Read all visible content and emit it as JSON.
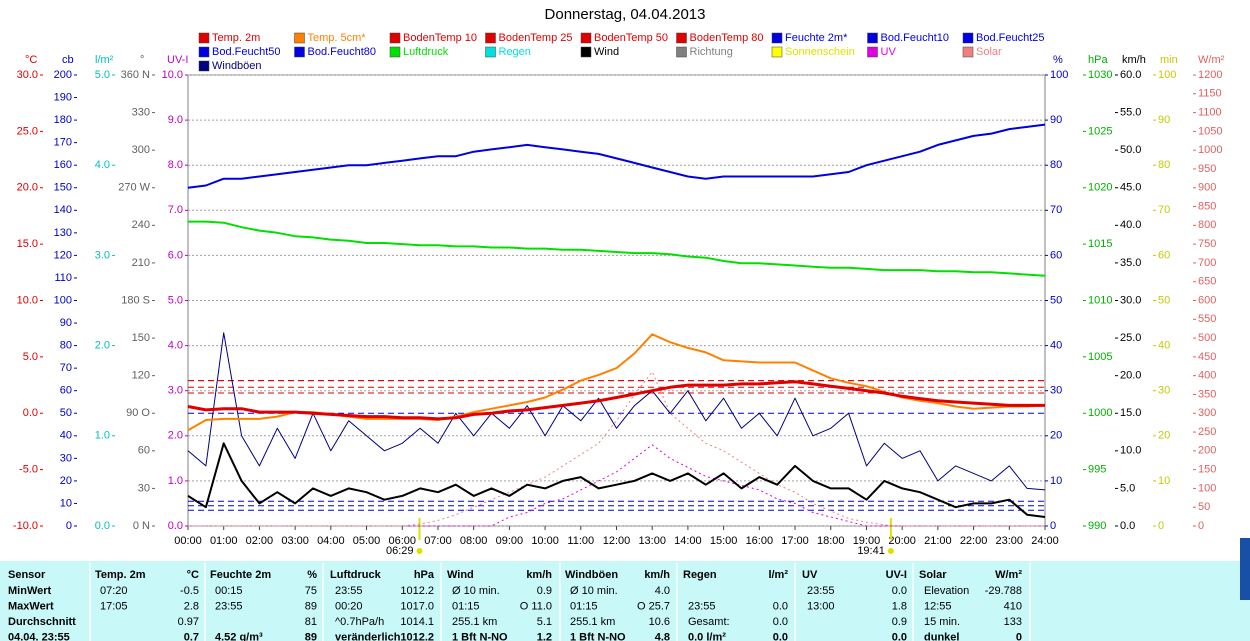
{
  "chart_data": {
    "type": "line",
    "title": "Donnerstag, 04.04.2013",
    "xlim": [
      0,
      24
    ],
    "xticks": [
      {
        "value": 0,
        "label": "00:00"
      },
      {
        "value": 1,
        "label": "01:00"
      },
      {
        "value": 2,
        "label": "02:00"
      },
      {
        "value": 3,
        "label": "03:00"
      },
      {
        "value": 4,
        "label": "04:00"
      },
      {
        "value": 5,
        "label": "05:00"
      },
      {
        "value": 6,
        "label": "06:00"
      },
      {
        "value": 7,
        "label": "07:00"
      },
      {
        "value": 8,
        "label": "08:00"
      },
      {
        "value": 9,
        "label": "09:00"
      },
      {
        "value": 10,
        "label": "10:00"
      },
      {
        "value": 11,
        "label": "11:00"
      },
      {
        "value": 12,
        "label": "12:00"
      },
      {
        "value": 13,
        "label": "13:00"
      },
      {
        "value": 14,
        "label": "14:00"
      },
      {
        "value": 15,
        "label": "15:00"
      },
      {
        "value": 16,
        "label": "16:00"
      },
      {
        "value": 17,
        "label": "17:00"
      },
      {
        "value": 18,
        "label": "18:00"
      },
      {
        "value": 19,
        "label": "19:00"
      },
      {
        "value": 20,
        "label": "20:00"
      },
      {
        "value": 21,
        "label": "21:00"
      },
      {
        "value": 22,
        "label": "22:00"
      },
      {
        "value": 23,
        "label": "23:00"
      },
      {
        "value": 24,
        "label": "24:00"
      }
    ],
    "sunrise": "06:29",
    "sunset": "19:41",
    "grid": true,
    "grid_axis": "UV-I",
    "x": [
      0,
      0.5,
      1,
      1.5,
      2,
      2.5,
      3,
      3.5,
      4,
      4.5,
      5,
      5.5,
      6,
      6.5,
      7,
      7.5,
      8,
      8.5,
      9,
      9.5,
      10,
      10.5,
      11,
      11.5,
      12,
      12.5,
      13,
      13.5,
      14,
      14.5,
      15,
      15.5,
      16,
      16.5,
      17,
      17.5,
      18,
      18.5,
      19,
      19.5,
      20,
      20.5,
      21,
      21.5,
      22,
      22.5,
      23,
      23.5,
      24
    ],
    "axes": [
      {
        "label": "°C",
        "side": "left",
        "color": "#e00000",
        "lim": [
          -10,
          30
        ],
        "ticks": [
          {
            "value": 30,
            "label": "30.0"
          },
          {
            "value": 25,
            "label": "25.0"
          },
          {
            "value": 20,
            "label": "20.0"
          },
          {
            "value": 15,
            "label": "15.0"
          },
          {
            "value": 10,
            "label": "10.0"
          },
          {
            "value": 5,
            "label": "5.0"
          },
          {
            "value": 0,
            "label": "0.0"
          },
          {
            "value": -5,
            "label": "-5.0"
          },
          {
            "value": -10,
            "label": "-10.0"
          }
        ]
      },
      {
        "label": "cb",
        "side": "left",
        "color": "#0000c0",
        "lim": [
          0,
          200
        ],
        "ticks": [
          200,
          190,
          180,
          170,
          160,
          150,
          140,
          130,
          120,
          110,
          100,
          90,
          80,
          70,
          60,
          50,
          40,
          30,
          20,
          10,
          0
        ]
      },
      {
        "label": "l/m²",
        "side": "left",
        "color": "#00c0c0",
        "lim": [
          0,
          5
        ],
        "ticks": [
          {
            "value": 5,
            "label": "5.0"
          },
          {
            "value": 4,
            "label": "4.0"
          },
          {
            "value": 3,
            "label": "3.0"
          },
          {
            "value": 2,
            "label": "2.0"
          },
          {
            "value": 1,
            "label": "1.0"
          },
          {
            "value": 0,
            "label": "0.0"
          }
        ]
      },
      {
        "label": "°",
        "side": "left",
        "color": "#606060",
        "lim": [
          0,
          360
        ],
        "ticks": [
          {
            "value": 360,
            "label": "360 N"
          },
          330,
          300,
          {
            "value": 270,
            "label": "270 W"
          },
          240,
          210,
          {
            "value": 180,
            "label": "180 S"
          },
          150,
          120,
          {
            "value": 90,
            "label": "90 O"
          },
          60,
          30,
          {
            "value": 0,
            "label": "0 N"
          }
        ]
      },
      {
        "label": "UV-I",
        "side": "left",
        "color": "#c000c0",
        "lim": [
          0,
          10
        ],
        "ticks": [
          {
            "value": 10,
            "label": "10.0"
          },
          {
            "value": 9,
            "label": "9.0"
          },
          {
            "value": 8,
            "label": "8.0"
          },
          {
            "value": 7,
            "label": "7.0"
          },
          {
            "value": 6,
            "label": "6.0"
          },
          {
            "value": 5,
            "label": "5.0"
          },
          {
            "value": 4,
            "label": "4.0"
          },
          {
            "value": 3,
            "label": "3.0"
          },
          {
            "value": 2,
            "label": "2.0"
          },
          {
            "value": 1,
            "label": "1.0"
          },
          {
            "value": 0,
            "label": "0.0"
          }
        ]
      },
      {
        "label": "%",
        "side": "right",
        "color": "#0000c0",
        "lim": [
          0,
          100
        ],
        "ticks": [
          100,
          90,
          80,
          70,
          60,
          50,
          40,
          30,
          20,
          10,
          0
        ]
      },
      {
        "label": "hPa",
        "side": "right",
        "color": "#00b000",
        "lim": [
          990,
          1030
        ],
        "ticks": [
          1030,
          1025,
          1020,
          1015,
          1010,
          1005,
          1000,
          995,
          990
        ]
      },
      {
        "label": "km/h",
        "side": "right",
        "color": "#000000",
        "lim": [
          0,
          60
        ],
        "ticks": [
          {
            "value": 60,
            "label": "60.0"
          },
          {
            "value": 55,
            "label": "55.0"
          },
          {
            "value": 50,
            "label": "50.0"
          },
          {
            "value": 45,
            "label": "45.0"
          },
          {
            "value": 40,
            "label": "40.0"
          },
          {
            "value": 35,
            "label": "35.0"
          },
          {
            "value": 30,
            "label": "30.0"
          },
          {
            "value": 25,
            "label": "25.0"
          },
          {
            "value": 20,
            "label": "20.0"
          },
          {
            "value": 15,
            "label": "15.0"
          },
          {
            "value": 10,
            "label": "10.0"
          },
          {
            "value": 5,
            "label": "5.0"
          },
          {
            "value": 0,
            "label": "0.0"
          }
        ]
      },
      {
        "label": "min",
        "side": "right",
        "color": "#c8c800",
        "lim": [
          0,
          100
        ],
        "ticks": [
          100,
          90,
          80,
          70,
          60,
          50,
          40,
          30,
          20,
          10,
          0
        ]
      },
      {
        "label": "W/m²",
        "side": "right",
        "color": "#e06060",
        "lim": [
          0,
          1200
        ],
        "ticks": [
          1200,
          1150,
          1100,
          1050,
          1000,
          950,
          900,
          850,
          800,
          750,
          700,
          650,
          600,
          550,
          500,
          450,
          400,
          350,
          300,
          250,
          200,
          150,
          100,
          50,
          0
        ]
      }
    ],
    "series": [
      {
        "name": "Temp. 2m",
        "color": "#e00000",
        "axis": "°C",
        "width": 3,
        "values": [
          0.6,
          0.3,
          0.4,
          0.4,
          0.1,
          0.1,
          0.1,
          0.0,
          -0.1,
          -0.2,
          -0.3,
          -0.3,
          -0.4,
          -0.4,
          -0.5,
          -0.4,
          -0.1,
          0.0,
          0.2,
          0.3,
          0.5,
          0.7,
          0.9,
          1.1,
          1.4,
          1.7,
          2.0,
          2.3,
          2.5,
          2.5,
          2.5,
          2.6,
          2.6,
          2.7,
          2.8,
          2.6,
          2.4,
          2.2,
          2.0,
          1.8,
          1.5,
          1.3,
          1.1,
          1.0,
          0.9,
          0.8,
          0.7,
          0.7,
          0.7
        ]
      },
      {
        "name": "Temp. 5cm*",
        "color": "#ff8000",
        "axis": "°C",
        "width": 2,
        "values": [
          -1.5,
          -0.6,
          -0.5,
          -0.5,
          -0.5,
          -0.3,
          0.1,
          0.1,
          -0.1,
          -0.3,
          -0.5,
          -0.5,
          -0.5,
          -0.5,
          -0.6,
          -0.3,
          0.1,
          0.4,
          0.7,
          1.0,
          1.4,
          2.1,
          2.9,
          3.4,
          4.0,
          5.3,
          7.0,
          6.3,
          5.8,
          5.4,
          4.7,
          4.6,
          4.5,
          4.5,
          4.5,
          3.8,
          3.1,
          2.7,
          2.4,
          1.9,
          1.4,
          1.1,
          0.9,
          0.6,
          0.4,
          0.5,
          0.6,
          0.6,
          0.7
        ]
      },
      {
        "name": "BodenTemp 10",
        "color": "#e00000",
        "axis": "°C",
        "width": 1,
        "style": "dashed",
        "x": [
          0,
          24
        ],
        "values": [
          1.8,
          1.8
        ]
      },
      {
        "name": "BodenTemp 25",
        "color": "#e00000",
        "axis": "°C",
        "width": 1,
        "style": "dashed",
        "x": [
          0,
          24
        ],
        "values": [
          2.3,
          2.3
        ]
      },
      {
        "name": "BodenTemp 50",
        "color": "#e00000",
        "axis": "°C",
        "width": 1,
        "style": "dashed",
        "x": [
          0,
          24
        ],
        "values": [
          2.9,
          2.9
        ]
      },
      {
        "name": "BodenTemp 80",
        "color": "#e00000",
        "axis": "°C",
        "width": 1,
        "style": "dashed",
        "x": [
          0,
          24
        ],
        "values": [
          2.9,
          2.9
        ]
      },
      {
        "name": "Feuchte 2m*",
        "color": "#0000e0",
        "axis": "%",
        "width": 2,
        "values": [
          75,
          75.5,
          77,
          77,
          77.5,
          78,
          78.5,
          79,
          79.5,
          80,
          80,
          80.5,
          81,
          81.5,
          82,
          82,
          83,
          83.5,
          84,
          84.5,
          84,
          83.5,
          83,
          82.5,
          81.5,
          80.5,
          79.5,
          78.5,
          77.5,
          77,
          77.5,
          77.5,
          77.5,
          77.5,
          77.5,
          77.5,
          78,
          78.5,
          80,
          81,
          82,
          83,
          84.5,
          85.5,
          86.5,
          87,
          88,
          88.5,
          89
        ]
      },
      {
        "name": "Bod.Feucht10",
        "color": "#0000e0",
        "axis": "cb",
        "width": 1,
        "style": "dashed",
        "x": [
          0,
          24
        ],
        "values": [
          50,
          50
        ]
      },
      {
        "name": "Bod.Feucht25",
        "color": "#0000e0",
        "axis": "cb",
        "width": 1,
        "style": "dashed",
        "x": [
          0,
          24
        ],
        "values": [
          11,
          11
        ]
      },
      {
        "name": "Bod.Feucht50",
        "color": "#0000e0",
        "axis": "cb",
        "width": 1,
        "style": "dashed",
        "x": [
          0,
          24
        ],
        "values": [
          9,
          9
        ]
      },
      {
        "name": "Bod.Feucht80",
        "color": "#0000e0",
        "axis": "cb",
        "width": 1,
        "style": "dashed",
        "x": [
          0,
          24
        ],
        "values": [
          7,
          7
        ]
      },
      {
        "name": "Luftdruck",
        "color": "#00e000",
        "axis": "hPa",
        "width": 2,
        "values": [
          1017.0,
          1017.0,
          1016.9,
          1016.5,
          1016.2,
          1016.0,
          1015.7,
          1015.6,
          1015.4,
          1015.3,
          1015.1,
          1015.1,
          1015.0,
          1014.9,
          1014.9,
          1014.8,
          1014.8,
          1014.7,
          1014.7,
          1014.6,
          1014.6,
          1014.5,
          1014.5,
          1014.4,
          1014.3,
          1014.2,
          1014.2,
          1014.1,
          1013.9,
          1013.8,
          1013.5,
          1013.3,
          1013.3,
          1013.2,
          1013.1,
          1013.0,
          1012.9,
          1012.9,
          1012.8,
          1012.7,
          1012.7,
          1012.7,
          1012.6,
          1012.6,
          1012.5,
          1012.5,
          1012.4,
          1012.3,
          1012.2
        ]
      },
      {
        "name": "Regen",
        "color": "#00e0e0",
        "axis": "l/m²"
      },
      {
        "name": "Wind",
        "color": "#000000",
        "axis": "km/h",
        "width": 2,
        "values": [
          4,
          2.5,
          11,
          6,
          3,
          4.5,
          3,
          5,
          4,
          5,
          4.5,
          3.5,
          4,
          5,
          4.5,
          5.5,
          4,
          5,
          4,
          5.5,
          5,
          6,
          6.5,
          5,
          5.5,
          6,
          7,
          6,
          7,
          5.5,
          7,
          5,
          6.5,
          5.5,
          8,
          6,
          5,
          5,
          3.5,
          6,
          5,
          4.5,
          3.5,
          2.5,
          3,
          3,
          3.5,
          1.5,
          1.2
        ]
      },
      {
        "name": "Richtung",
        "color": "#808080",
        "axis": "°"
      },
      {
        "name": "Sonnenschein",
        "color": "#ffff00",
        "axis": "min"
      },
      {
        "name": "UV",
        "color": "#e000e0",
        "axis": "UV-I",
        "width": 1,
        "style": "dotted",
        "values": [
          0,
          0,
          0,
          0,
          0,
          0,
          0,
          0,
          0,
          0,
          0,
          0,
          0,
          0,
          0,
          0,
          0,
          0,
          0.2,
          0.3,
          0.5,
          0.6,
          0.8,
          1.0,
          1.2,
          1.5,
          1.8,
          1.5,
          1.3,
          1.1,
          1.0,
          0.9,
          0.8,
          0.6,
          0.5,
          0.3,
          0.2,
          0.1,
          0,
          0,
          0,
          0,
          0,
          0,
          0,
          0,
          0,
          0,
          0
        ]
      },
      {
        "name": "Solar",
        "color": "#f08080",
        "axis": "W/m²",
        "width": 1,
        "style": "dotted",
        "values": [
          0,
          0,
          0,
          0,
          0,
          0,
          0,
          0,
          0,
          0,
          0,
          0,
          0,
          5,
          15,
          30,
          50,
          70,
          90,
          110,
          130,
          160,
          190,
          220,
          280,
          350,
          410,
          300,
          260,
          220,
          200,
          170,
          140,
          110,
          90,
          60,
          40,
          20,
          10,
          3,
          0,
          0,
          0,
          0,
          0,
          0,
          0,
          0,
          0
        ]
      },
      {
        "name": "Windböen",
        "color": "#000080",
        "axis": "km/h",
        "width": 1,
        "values": [
          10,
          8,
          25.7,
          12,
          8,
          13,
          9,
          15,
          10,
          14,
          12,
          10,
          11,
          13,
          11,
          15,
          12,
          15,
          13,
          16,
          12,
          16,
          14,
          17,
          13,
          16,
          18,
          15,
          18,
          14,
          17,
          13,
          15,
          12,
          17,
          12,
          13,
          15,
          8,
          11,
          9,
          10,
          6,
          8,
          7,
          6,
          8,
          5,
          4.8
        ]
      }
    ]
  },
  "table": {
    "header": [
      "Sensor",
      "Temp. 2m",
      "°C",
      "Feuchte 2m",
      "%",
      "Luftdruck",
      "hPa",
      "Wind",
      "km/h",
      "Windböen",
      "km/h",
      "Regen",
      "l/m²",
      "UV",
      "UV-I",
      "Solar",
      "W/m²"
    ],
    "rows": [
      [
        "MinWert",
        "07:20",
        "-0.5",
        "00:15",
        "75",
        "23:55",
        "1012.2",
        "Ø 10 min.",
        "0.9",
        "Ø 10 min.",
        "4.0",
        null,
        null,
        "23:55",
        "0.0",
        "Elevation",
        "-29.788"
      ],
      [
        "MaxWert",
        "17:05",
        "2.8",
        "23:55",
        "89",
        "00:20",
        "1017.0",
        "01:15",
        "O 11.0",
        "01:15",
        "O 25.7",
        "23:55",
        "0.0",
        "13:00",
        "1.8",
        "12:55",
        "410"
      ],
      [
        "Durchschnitt",
        null,
        "0.97",
        null,
        "81",
        "^0.7hPa/h",
        "1014.1",
        "255.1 km",
        "5.1",
        "255.1 km",
        "10.6",
        "Gesamt:",
        "0.0",
        null,
        "0.9",
        "15 min.",
        "133"
      ],
      [
        "04.04. 23:55",
        null,
        "0.7",
        "4.52 g/m³",
        "89",
        "veränderlich",
        "1012.2",
        "1 Bft N-NO",
        "1.2",
        "1 Bft N-NO",
        "4.8",
        "0.0 l/m²",
        "0.0",
        null,
        "0.0",
        "dunkel",
        "0"
      ]
    ]
  }
}
